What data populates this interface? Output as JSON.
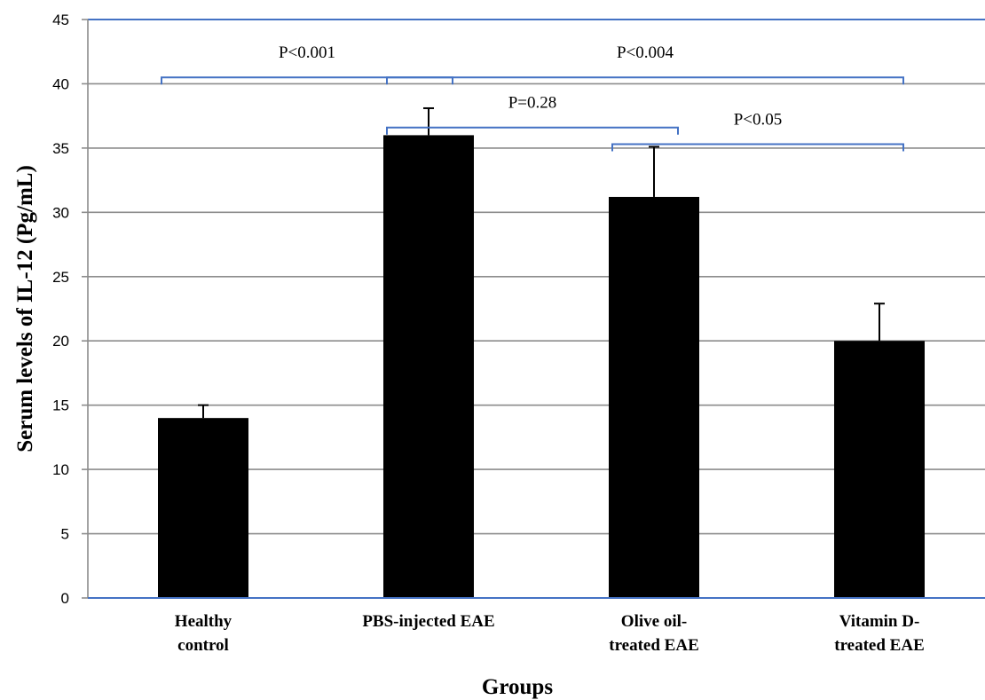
{
  "chart_data": {
    "type": "bar",
    "xlabel": "Groups",
    "ylabel": "Serum levels of IL-12 (Pg/mL)",
    "ylim": [
      0,
      45
    ],
    "y_ticks": [
      "0",
      "5",
      "10",
      "15",
      "20",
      "25",
      "30",
      "35",
      "40",
      "45"
    ],
    "grid": true,
    "bar_color": "#000000",
    "categories": [
      [
        "Healthy",
        "control"
      ],
      [
        "PBS-injected EAE"
      ],
      [
        "Olive oil-",
        "treated EAE"
      ],
      [
        "Vitamin D-",
        "treated EAE"
      ]
    ],
    "values": [
      14,
      36,
      31.2,
      20
    ],
    "error_upper": [
      15,
      38.1,
      35.1,
      22.9
    ],
    "significance": [
      {
        "label": "P<0.001",
        "from": 0,
        "to": 1,
        "y": 40.5
      },
      {
        "label": "P<0.004",
        "from": 1,
        "to": 3,
        "y": 40.5
      },
      {
        "label": "P=0.28",
        "from": 1,
        "to": 2,
        "y": 36.6
      },
      {
        "label": "P<0.05",
        "from": 2,
        "to": 3,
        "y": 35.3
      }
    ]
  }
}
